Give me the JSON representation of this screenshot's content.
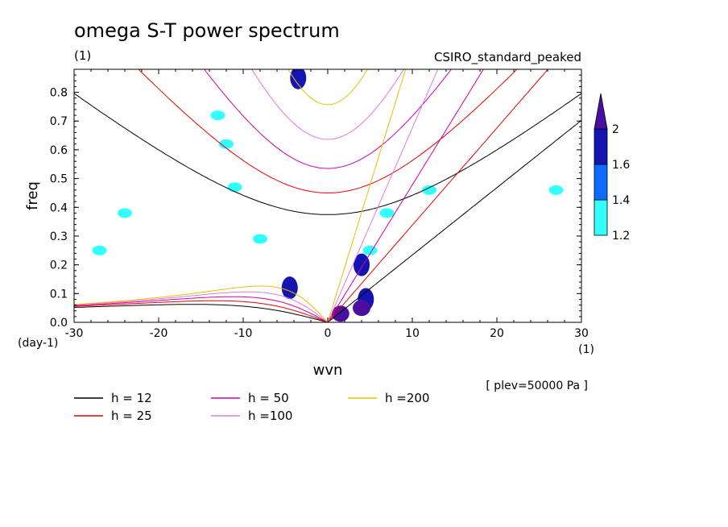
{
  "chart_data": {
    "type": "contour",
    "title": "omega S-T power spectrum",
    "title_units": "(1)",
    "model": "CSIRO_standard_peaked",
    "xlabel": "wvn",
    "ylabel": "freq",
    "x_units": "(1)",
    "y_units": "(day-1)",
    "plev_note": "[ plev=50000 Pa ]",
    "xlim": [
      -30,
      30
    ],
    "ylim": [
      0,
      0.88
    ],
    "x_ticks": [
      -30,
      -20,
      -10,
      0,
      10,
      20,
      30
    ],
    "y_ticks": [
      0.0,
      0.1,
      0.2,
      0.3,
      0.4,
      0.5,
      0.6,
      0.7,
      0.8
    ],
    "x_tick_labels": [
      "-30",
      "-20",
      "-10",
      "0",
      "10",
      "20",
      "30"
    ],
    "y_tick_labels": [
      "0.0",
      "0.1",
      "0.2",
      "0.3",
      "0.4",
      "0.5",
      "0.6",
      "0.7",
      "0.8"
    ],
    "colorbar": {
      "levels": [
        1.2,
        1.4,
        1.6,
        2
      ],
      "labels": [
        "1.2",
        "1.4",
        "1.6",
        "2"
      ],
      "colors": [
        "#33ffff",
        "#0d6bff",
        "#1414b0",
        "#4b0fa0"
      ]
    },
    "dispersion_curves": [
      {
        "label": "h = 12",
        "h": 12,
        "color": "#000000"
      },
      {
        "label": "h = 25",
        "h": 25,
        "color": "#e80000"
      },
      {
        "label": "h = 50",
        "h": 50,
        "color": "#cc00b0"
      },
      {
        "label": "h =100",
        "h": 100,
        "color": "#e07ae0"
      },
      {
        "label": "h =200",
        "h": 200,
        "color": "#e8c000"
      }
    ],
    "shaded_regions": [
      {
        "level": 1.2,
        "x": -3.5,
        "y": 0.85
      },
      {
        "level": 1.2,
        "x": -13,
        "y": 0.72
      },
      {
        "level": 1.2,
        "x": -12,
        "y": 0.62
      },
      {
        "level": 1.2,
        "x": -11,
        "y": 0.47
      },
      {
        "level": 1.2,
        "x": -24,
        "y": 0.38
      },
      {
        "level": 1.2,
        "x": -8,
        "y": 0.29
      },
      {
        "level": 1.2,
        "x": -27,
        "y": 0.25
      },
      {
        "level": 1.2,
        "x": 7,
        "y": 0.38
      },
      {
        "level": 1.2,
        "x": 12,
        "y": 0.46
      },
      {
        "level": 1.2,
        "x": 27,
        "y": 0.46
      },
      {
        "level": 1.2,
        "x": 5,
        "y": 0.25
      },
      {
        "level": 1.6,
        "x": 4,
        "y": 0.2
      },
      {
        "level": 1.6,
        "x": 4.5,
        "y": 0.08
      },
      {
        "level": 2,
        "x": 4,
        "y": 0.05
      },
      {
        "level": 2,
        "x": 1.5,
        "y": 0.03
      },
      {
        "level": 1.6,
        "x": -4.5,
        "y": 0.12
      },
      {
        "level": 1.6,
        "x": -3.5,
        "y": 0.85
      }
    ]
  }
}
